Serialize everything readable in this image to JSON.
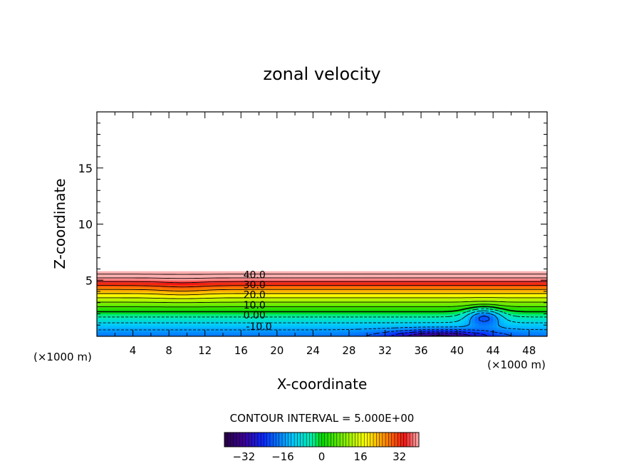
{
  "chart_data": {
    "type": "heatmap",
    "title": "zonal velocity",
    "xlabel": "X-coordinate",
    "ylabel": "Z-coordinate",
    "x_unit_left": "(×1000 m)",
    "x_unit_right": "(×1000 m)",
    "xlim": [
      0,
      50
    ],
    "ylim": [
      0,
      20
    ],
    "x_ticks": [
      4,
      8,
      12,
      16,
      20,
      24,
      28,
      32,
      36,
      40,
      44,
      48
    ],
    "y_ticks": [
      5,
      10,
      15
    ],
    "field_top": 5.8,
    "contour_interval": 5,
    "contour_interval_label": "CONTOUR INTERVAL = 5.000E+00",
    "contour_labels": [
      {
        "text": "40.0",
        "x": 17.5,
        "y": 5.5
      },
      {
        "text": "30.0",
        "x": 17.5,
        "y": 4.6
      },
      {
        "text": "20.0",
        "x": 17.5,
        "y": 3.7
      },
      {
        "text": "10.0",
        "x": 17.5,
        "y": 2.8
      },
      {
        "text": "0.00",
        "x": 17.5,
        "y": 1.9
      },
      {
        "text": "-10.0",
        "x": 18.0,
        "y": 0.9
      }
    ],
    "colorbar": {
      "min": -40,
      "max": 40,
      "ticks": [
        -32,
        -16,
        0,
        16,
        32
      ],
      "tick_labels": [
        "−32",
        "−16",
        "0",
        "16",
        "32"
      ]
    },
    "grid": false
  }
}
